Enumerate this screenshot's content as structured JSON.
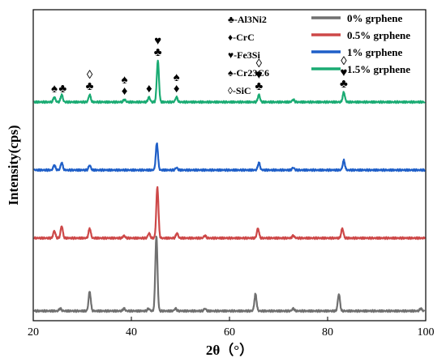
{
  "chart_data": {
    "type": "line",
    "xlabel": "2θ（°）",
    "ylabel": "Intensity(cps)",
    "xlim": [
      20,
      100
    ],
    "xticks": [
      20,
      40,
      60,
      80,
      100
    ],
    "grid": false,
    "legend_position": "top-right",
    "series": [
      {
        "name": "0% grphene",
        "color": "#707070",
        "baseline": 0.0,
        "peaks": [
          [
            25.5,
            0.01
          ],
          [
            31.5,
            0.08
          ],
          [
            38.5,
            0.01
          ],
          [
            43.5,
            0.01
          ],
          [
            45.1,
            0.31
          ],
          [
            49.0,
            0.01
          ],
          [
            55.0,
            0.01
          ],
          [
            65.3,
            0.07
          ],
          [
            73.0,
            0.01
          ],
          [
            82.3,
            0.07
          ],
          [
            99.0,
            0.01
          ]
        ]
      },
      {
        "name": "0.5% grphene",
        "color": "#cd4848",
        "baseline": 0.3,
        "peaks": [
          [
            24.3,
            0.03
          ],
          [
            25.8,
            0.05
          ],
          [
            31.5,
            0.04
          ],
          [
            38.5,
            0.01
          ],
          [
            43.6,
            0.02
          ],
          [
            45.3,
            0.21
          ],
          [
            49.3,
            0.02
          ],
          [
            55.0,
            0.01
          ],
          [
            65.8,
            0.04
          ],
          [
            73.0,
            0.01
          ],
          [
            83.0,
            0.04
          ]
        ]
      },
      {
        "name": "1% grphene",
        "color": "#1f5fc8",
        "baseline": 0.58,
        "peaks": [
          [
            24.3,
            0.02
          ],
          [
            25.8,
            0.03
          ],
          [
            31.5,
            0.02
          ],
          [
            45.2,
            0.11
          ],
          [
            49.2,
            0.01
          ],
          [
            66.0,
            0.03
          ],
          [
            73.0,
            0.01
          ],
          [
            83.3,
            0.04
          ]
        ]
      },
      {
        "name": "1.5% grphene",
        "color": "#1aab73",
        "baseline": 0.86,
        "peaks": [
          [
            24.3,
            0.02
          ],
          [
            25.8,
            0.03
          ],
          [
            31.5,
            0.03
          ],
          [
            38.6,
            0.01
          ],
          [
            43.6,
            0.02
          ],
          [
            45.4,
            0.17
          ],
          [
            49.2,
            0.02
          ],
          [
            66.0,
            0.03
          ],
          [
            73.0,
            0.01
          ],
          [
            83.3,
            0.04
          ]
        ]
      }
    ],
    "phase_legend": [
      "♣-Al3Ni2",
      "♦-CrC",
      "♥-Fe3Si",
      "♠-Cr23C6",
      "◊-SiC"
    ],
    "annotations": [
      {
        "x": 24.3,
        "symbols": [
          "♠"
        ]
      },
      {
        "x": 26.0,
        "symbols": [
          "♣"
        ]
      },
      {
        "x": 31.5,
        "symbols": [
          "◊",
          "♣"
        ]
      },
      {
        "x": 38.6,
        "symbols": [
          "♠",
          "♦"
        ]
      },
      {
        "x": 43.6,
        "symbols": [
          "♦"
        ]
      },
      {
        "x": 45.4,
        "symbols": [
          "♥",
          "♣"
        ]
      },
      {
        "x": 49.2,
        "symbols": [
          "♠",
          "♦"
        ]
      },
      {
        "x": 66.0,
        "symbols": [
          "◊",
          "♥",
          "♣"
        ]
      },
      {
        "x": 83.3,
        "symbols": [
          "◊",
          "♥",
          "♣"
        ]
      }
    ]
  }
}
